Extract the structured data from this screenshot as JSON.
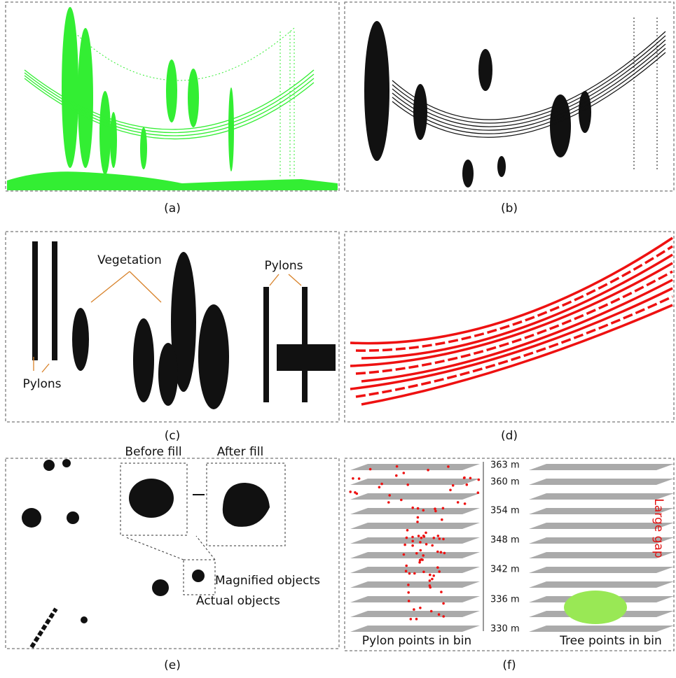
{
  "panels": [
    {
      "label": "(a)"
    },
    {
      "label": "(b)"
    },
    {
      "label": "(c)",
      "annotations": [
        "Vegetation",
        "Pylons",
        "Pylons"
      ]
    },
    {
      "label": "(d)"
    },
    {
      "label": "(e)",
      "annotations": [
        "Before fill",
        "After fill",
        "Magnified objects",
        "Actual objects"
      ]
    },
    {
      "label": "(f)",
      "scale": [
        "363 m",
        "360 m",
        "354 m",
        "348 m",
        "342 m",
        "336 m",
        "330 m"
      ],
      "annotations": [
        "Large gap",
        "Pylon points in bin",
        "Tree points in bin"
      ]
    }
  ]
}
